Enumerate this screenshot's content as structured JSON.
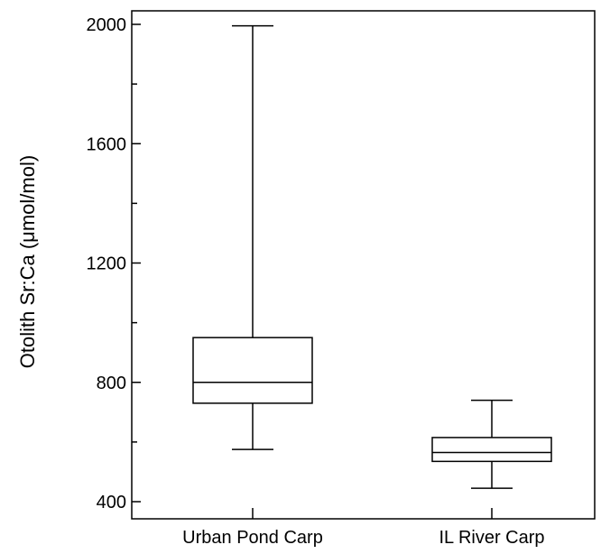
{
  "chart_data": {
    "type": "box",
    "ylabel": "Otolith Sr:Ca (μmol/mol)",
    "xlabel": "",
    "ylim": [
      400,
      2000
    ],
    "yticks": [
      400,
      800,
      1200,
      1600,
      2000
    ],
    "yminor_step": 200,
    "categories": [
      "Urban Pond Carp",
      "IL River Carp"
    ],
    "boxes": [
      {
        "category": "Urban Pond Carp",
        "min": 575,
        "q1": 730,
        "median": 800,
        "q3": 950,
        "max": 1995
      },
      {
        "category": "IL River Carp",
        "min": 445,
        "q1": 535,
        "median": 565,
        "q3": 615,
        "max": 740
      }
    ],
    "grid": false
  }
}
